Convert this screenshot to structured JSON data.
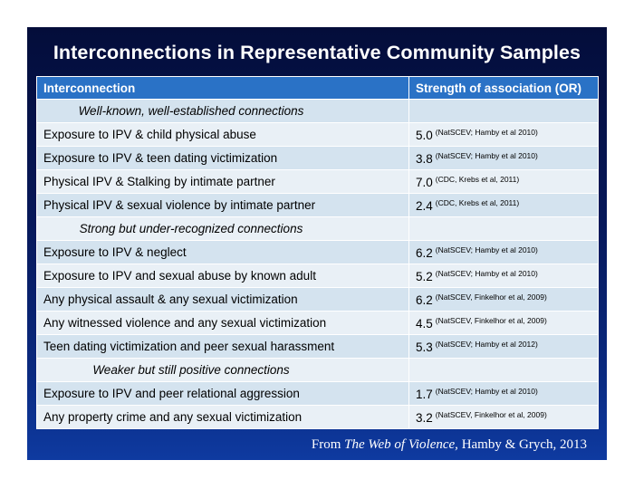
{
  "title": "Interconnections in Representative Community Samples",
  "table": {
    "headers": [
      "Interconnection",
      "Strength of association (OR)"
    ],
    "rows": [
      {
        "type": "group",
        "label": "Well-known, well-established connections"
      },
      {
        "type": "data",
        "label": "Exposure to IPV & child physical abuse",
        "or": "5.0",
        "source": "(NatSCEV; Hamby et al 2010)"
      },
      {
        "type": "data",
        "label": "Exposure to IPV & teen dating victimization",
        "or": "3.8",
        "source": "(NatSCEV; Hamby et al 2010)"
      },
      {
        "type": "data",
        "label": "Physical IPV & Stalking by intimate partner",
        "or": "7.0",
        "source": "(CDC, Krebs et al, 2011)"
      },
      {
        "type": "data",
        "label": "Physical IPV & sexual violence by intimate partner",
        "or": "2.4",
        "source": "(CDC, Krebs et al, 2011)"
      },
      {
        "type": "group",
        "label": "Strong but under-recognized connections"
      },
      {
        "type": "data",
        "label": "Exposure to IPV & neglect",
        "or": "6.2",
        "source": "(NatSCEV; Hamby et al 2010)"
      },
      {
        "type": "data",
        "label": "Exposure to IPV and sexual abuse by known adult",
        "or": "5.2",
        "source": "(NatSCEV; Hamby et al 2010)"
      },
      {
        "type": "data",
        "label": "Any physical assault & any sexual victimization",
        "or": "6.2",
        "source": "(NatSCEV, Finkelhor et al, 2009)"
      },
      {
        "type": "data",
        "label": "Any witnessed violence and any sexual victimization",
        "or": "4.5",
        "source": "(NatSCEV, Finkelhor et al, 2009)"
      },
      {
        "type": "data",
        "label": "Teen dating victimization and peer sexual harassment",
        "or": "5.3",
        "source": "(NatSCEV; Hamby et al 2012)"
      },
      {
        "type": "group",
        "label": "Weaker but still positive connections"
      },
      {
        "type": "data",
        "label": "Exposure to IPV and peer relational aggression",
        "or": "1.7",
        "source": "(NatSCEV; Hamby et al 2010)"
      },
      {
        "type": "data",
        "label": "Any property crime and any sexual victimization",
        "or": "3.2",
        "source": "(NatSCEV, Finkelhor et al, 2009)"
      }
    ]
  },
  "footer": {
    "prefix": "From",
    "book": "The Web of Violence,",
    "suffix": "Hamby & Grych, 2013"
  },
  "colors": {
    "background_top": "#040d3a",
    "background_bottom": "#0e3aa0",
    "header_blue": "#2a72c6",
    "row_light": "#d4e3ef",
    "row_lighter": "#e9f0f6"
  }
}
